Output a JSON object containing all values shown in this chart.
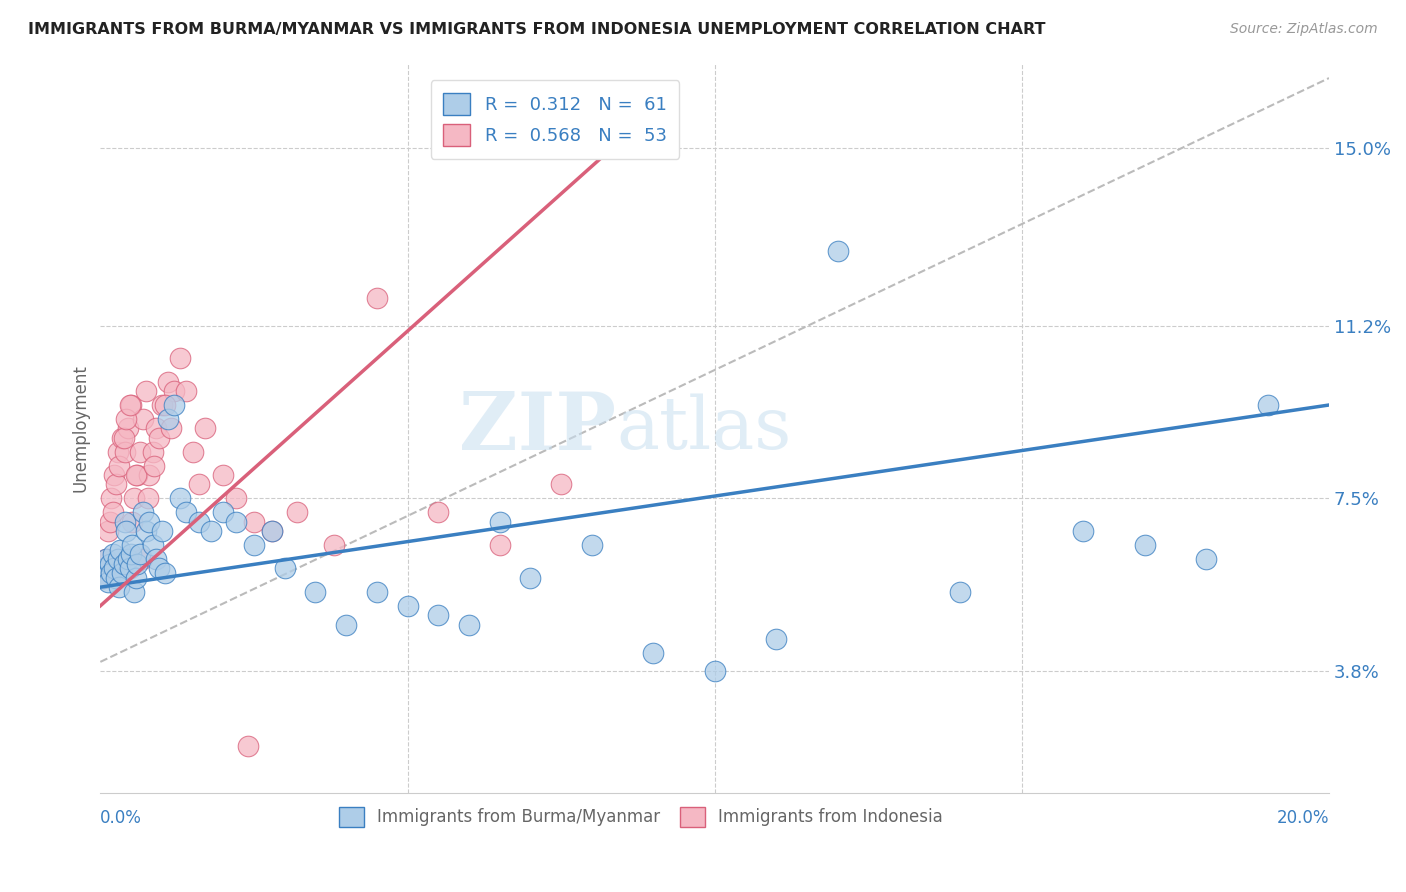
{
  "title": "IMMIGRANTS FROM BURMA/MYANMAR VS IMMIGRANTS FROM INDONESIA UNEMPLOYMENT CORRELATION CHART",
  "source": "Source: ZipAtlas.com",
  "ylabel": "Unemployment",
  "ytick_labels": [
    "3.8%",
    "7.5%",
    "11.2%",
    "15.0%"
  ],
  "ytick_values": [
    3.8,
    7.5,
    11.2,
    15.0
  ],
  "xlim": [
    0.0,
    20.0
  ],
  "ylim": [
    1.2,
    16.8
  ],
  "color_burma": "#aecde8",
  "color_indonesia": "#f5b8c4",
  "color_burma_line": "#3a7fc1",
  "color_indonesia_line": "#d9607a",
  "color_trend_dashed": "#bbbbbb",
  "watermark_zip": "ZIP",
  "watermark_atlas": "atlas",
  "scatter_burma_x": [
    0.05,
    0.08,
    0.1,
    0.12,
    0.15,
    0.18,
    0.2,
    0.22,
    0.25,
    0.28,
    0.3,
    0.32,
    0.35,
    0.38,
    0.4,
    0.42,
    0.45,
    0.48,
    0.5,
    0.52,
    0.55,
    0.58,
    0.6,
    0.65,
    0.7,
    0.75,
    0.8,
    0.85,
    0.9,
    0.95,
    1.0,
    1.05,
    1.1,
    1.2,
    1.3,
    1.4,
    1.6,
    1.8,
    2.0,
    2.2,
    2.5,
    2.8,
    3.0,
    3.5,
    4.0,
    4.5,
    5.0,
    5.5,
    6.0,
    6.5,
    7.0,
    8.0,
    9.0,
    10.0,
    11.0,
    12.0,
    14.0,
    16.0,
    17.0,
    18.0,
    19.0
  ],
  "scatter_burma_y": [
    5.8,
    6.0,
    6.2,
    5.7,
    6.1,
    5.9,
    6.3,
    6.0,
    5.8,
    6.2,
    5.6,
    6.4,
    5.9,
    6.1,
    7.0,
    6.8,
    6.2,
    6.0,
    6.3,
    6.5,
    5.5,
    5.8,
    6.1,
    6.3,
    7.2,
    6.8,
    7.0,
    6.5,
    6.2,
    6.0,
    6.8,
    5.9,
    9.2,
    9.5,
    7.5,
    7.2,
    7.0,
    6.8,
    7.2,
    7.0,
    6.5,
    6.8,
    6.0,
    5.5,
    4.8,
    5.5,
    5.2,
    5.0,
    4.8,
    7.0,
    5.8,
    6.5,
    4.2,
    3.8,
    4.5,
    12.8,
    5.5,
    6.8,
    6.5,
    6.2,
    9.5
  ],
  "scatter_indonesia_x": [
    0.05,
    0.08,
    0.1,
    0.12,
    0.15,
    0.18,
    0.2,
    0.22,
    0.25,
    0.28,
    0.3,
    0.35,
    0.4,
    0.45,
    0.5,
    0.55,
    0.6,
    0.65,
    0.7,
    0.75,
    0.8,
    0.85,
    0.9,
    0.95,
    1.0,
    1.1,
    1.2,
    1.3,
    1.5,
    1.7,
    2.0,
    2.2,
    2.5,
    2.8,
    3.2,
    3.8,
    4.5,
    5.5,
    6.5,
    7.5,
    0.38,
    0.42,
    0.48,
    0.52,
    0.58,
    0.68,
    0.78,
    0.88,
    1.05,
    1.15,
    1.4,
    1.6,
    2.4
  ],
  "scatter_indonesia_y": [
    5.8,
    6.0,
    6.2,
    6.8,
    7.0,
    7.5,
    7.2,
    8.0,
    7.8,
    8.5,
    8.2,
    8.8,
    8.5,
    9.0,
    9.5,
    7.5,
    8.0,
    8.5,
    9.2,
    9.8,
    8.0,
    8.5,
    9.0,
    8.8,
    9.5,
    10.0,
    9.8,
    10.5,
    8.5,
    9.0,
    8.0,
    7.5,
    7.0,
    6.8,
    7.2,
    6.5,
    11.8,
    7.2,
    6.5,
    7.8,
    8.8,
    9.2,
    9.5,
    7.0,
    8.0,
    6.2,
    7.5,
    8.2,
    9.5,
    9.0,
    9.8,
    7.8,
    2.2
  ],
  "burma_line_x": [
    0.0,
    20.0
  ],
  "burma_line_y": [
    5.6,
    9.5
  ],
  "indonesia_line_x": [
    0.0,
    8.5
  ],
  "indonesia_line_y": [
    5.2,
    15.2
  ],
  "dashed_line_x": [
    0.0,
    20.0
  ],
  "dashed_line_y": [
    4.0,
    16.5
  ]
}
